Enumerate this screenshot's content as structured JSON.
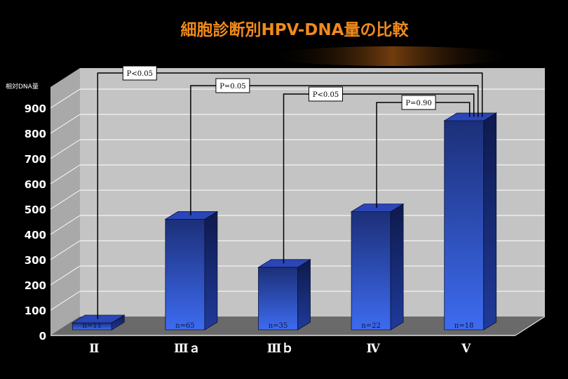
{
  "chart_data": {
    "type": "bar",
    "title": "細胞診断別HPV-DNA量の比較",
    "ylabel": "相対DNA量",
    "ylim": [
      0,
      900
    ],
    "yticks": [
      0,
      100,
      200,
      300,
      400,
      500,
      600,
      700,
      800,
      900
    ],
    "categories": [
      "Ⅱ",
      "Ⅲａ",
      "Ⅲｂ",
      "Ⅳ",
      "Ⅴ"
    ],
    "values": [
      50,
      460,
      270,
      490,
      850
    ],
    "sample_sizes": [
      "n=11",
      "n=65",
      "n=35",
      "n=22",
      "n=18"
    ],
    "comparisons": [
      {
        "from": "Ⅱ",
        "to": "Ⅴ",
        "label": "P<0.05"
      },
      {
        "from": "Ⅲａ",
        "to": "Ⅴ",
        "label": "P=0.05"
      },
      {
        "from": "Ⅲｂ",
        "to": "Ⅴ",
        "label": "P<0.05"
      },
      {
        "from": "Ⅳ",
        "to": "Ⅴ",
        "label": "P=0.90"
      }
    ],
    "grid": true
  },
  "colors": {
    "background": "#000000",
    "title": "#f08a1c",
    "wall": "#c4c4c4",
    "floor": "#6a6a6a",
    "bar_top": "#1c2f78",
    "bar_bottom": "#3d6bf0",
    "axis_text": "#ffffff"
  }
}
